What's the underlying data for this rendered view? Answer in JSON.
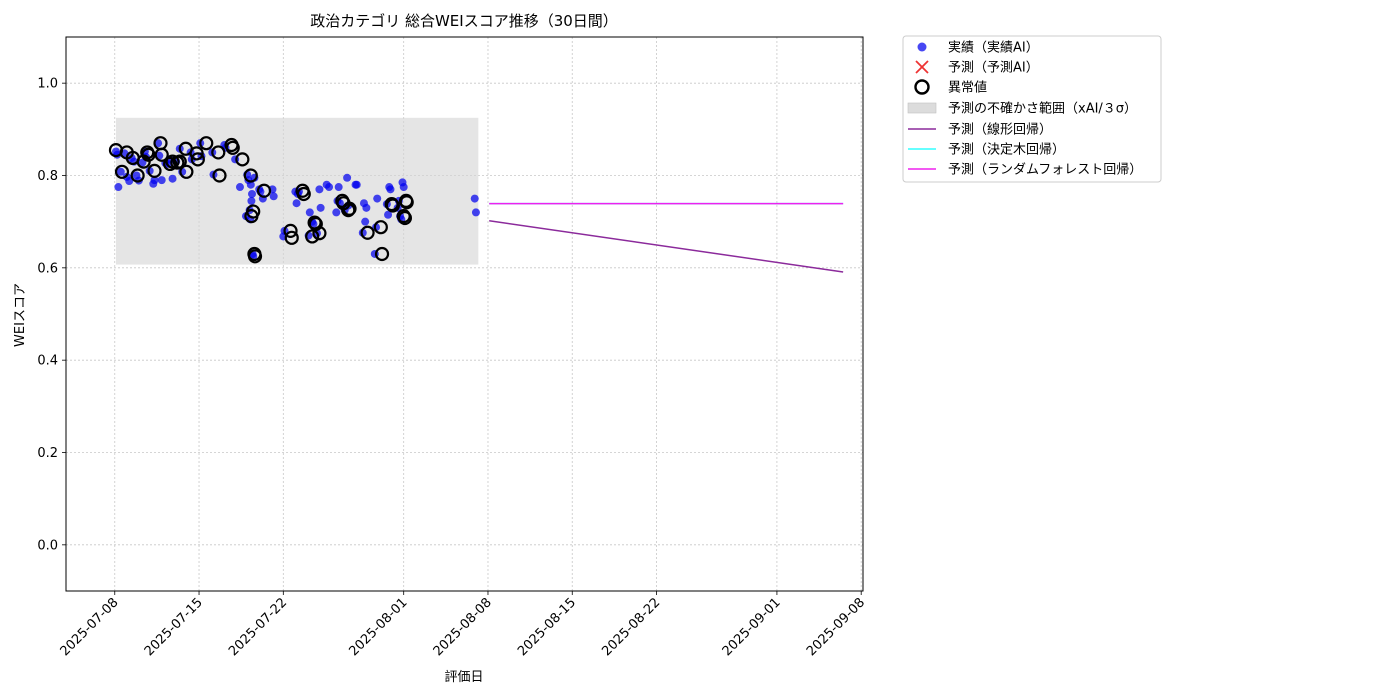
{
  "chart_data": {
    "type": "scatter",
    "title": "政治カテゴリ 総合WEIスコア推移（30日間）",
    "xlabel": "評価日",
    "ylabel": "WEIスコア",
    "xlim": [
      "2025-07-04",
      "2025-09-08"
    ],
    "ylim": [
      -0.1,
      1.1
    ],
    "grid": true,
    "legend_position": "outside-upper-right",
    "x_ticks": [
      "2025-07-08",
      "2025-07-15",
      "2025-07-22",
      "2025-08-01",
      "2025-08-08",
      "2025-08-15",
      "2025-08-22",
      "2025-09-01",
      "2025-09-08"
    ],
    "y_ticks": [
      "0.0",
      "0.2",
      "0.4",
      "0.6",
      "0.8",
      "1.0"
    ],
    "colors": {
      "actual": "#0000ee",
      "predicted_marker": "#ee3333",
      "anomaly_edge": "#000000",
      "uncertainty_band": "#d3d3d3",
      "linear": "#8b2a9b",
      "decision_tree": "#33ffff",
      "random_forest": "#ee22ee"
    },
    "legend": [
      {
        "key": "actual",
        "label": "実績（実績AI）",
        "symbol": "dot"
      },
      {
        "key": "predicted_marker",
        "label": "予測（予測AI）",
        "symbol": "cross"
      },
      {
        "key": "anomaly",
        "label": "異常値",
        "symbol": "ring"
      },
      {
        "key": "uncertainty_band",
        "label": "予測の不確かさ範囲（xAI/３σ）",
        "symbol": "band"
      },
      {
        "key": "linear",
        "label": "予測（線形回帰）",
        "symbol": "line"
      },
      {
        "key": "decision_tree",
        "label": "予測（決定木回帰）",
        "symbol": "line"
      },
      {
        "key": "random_forest",
        "label": "予測（ランダムフォレスト回帰）",
        "symbol": "line"
      }
    ],
    "uncertainty_band": {
      "x_start": 7.1,
      "x_end": 37.2,
      "y_low": 0.607,
      "y_high": 0.925
    },
    "forecast_lines": {
      "linear": {
        "x": [
          38.1,
          67.5
        ],
        "y": [
          0.702,
          0.591
        ]
      },
      "decision_tree": {
        "x": [
          38.1,
          67.5
        ],
        "y": [
          0.739,
          0.739
        ]
      },
      "random_forest": {
        "x": [
          38.1,
          67.5
        ],
        "y": [
          0.739,
          0.739
        ]
      }
    },
    "actual_points": [
      [
        7.1,
        0.852
      ],
      [
        7.2,
        0.845
      ],
      [
        7.3,
        0.775
      ],
      [
        7.5,
        0.808
      ],
      [
        7.8,
        0.848
      ],
      [
        8.0,
        0.797
      ],
      [
        8.2,
        0.788
      ],
      [
        8.4,
        0.838
      ],
      [
        8.6,
        0.83
      ],
      [
        8.8,
        0.8
      ],
      [
        9.0,
        0.789
      ],
      [
        9.3,
        0.828
      ],
      [
        9.5,
        0.852
      ],
      [
        9.6,
        0.84
      ],
      [
        9.9,
        0.81
      ],
      [
        10.2,
        0.782
      ],
      [
        10.3,
        0.79
      ],
      [
        10.6,
        0.87
      ],
      [
        10.7,
        0.843
      ],
      [
        10.9,
        0.79
      ],
      [
        11.2,
        0.827
      ],
      [
        11.4,
        0.825
      ],
      [
        11.6,
        0.835
      ],
      [
        11.8,
        0.793
      ],
      [
        12.1,
        0.83
      ],
      [
        12.4,
        0.858
      ],
      [
        12.6,
        0.808
      ],
      [
        13.3,
        0.85
      ],
      [
        13.4,
        0.835
      ],
      [
        14.1,
        0.87
      ],
      [
        14.2,
        0.842
      ],
      [
        15.1,
        0.85
      ],
      [
        15.2,
        0.802
      ],
      [
        16.1,
        0.866
      ],
      [
        16.2,
        0.86
      ],
      [
        17.0,
        0.835
      ],
      [
        17.4,
        0.775
      ],
      [
        17.9,
        0.712
      ],
      [
        18.0,
        0.802
      ],
      [
        18.1,
        0.79
      ],
      [
        18.2,
        0.725
      ],
      [
        18.25,
        0.705
      ],
      [
        18.3,
        0.78
      ],
      [
        18.35,
        0.745
      ],
      [
        18.4,
        0.76
      ],
      [
        18.45,
        0.63
      ],
      [
        18.5,
        0.625
      ],
      [
        18.6,
        0.795
      ],
      [
        19.0,
        0.77
      ],
      [
        19.1,
        0.765
      ],
      [
        19.3,
        0.75
      ],
      [
        20.1,
        0.77
      ],
      [
        20.2,
        0.755
      ],
      [
        21.0,
        0.668
      ],
      [
        21.1,
        0.68
      ],
      [
        22.0,
        0.765
      ],
      [
        22.1,
        0.74
      ],
      [
        22.2,
        0.76
      ],
      [
        22.3,
        0.765
      ],
      [
        23.1,
        0.67
      ],
      [
        23.2,
        0.72
      ],
      [
        23.4,
        0.7
      ],
      [
        23.5,
        0.695
      ],
      [
        23.8,
        0.675
      ],
      [
        24.0,
        0.77
      ],
      [
        24.1,
        0.73
      ],
      [
        24.6,
        0.78
      ],
      [
        24.8,
        0.775
      ],
      [
        25.4,
        0.72
      ],
      [
        25.5,
        0.745
      ],
      [
        25.6,
        0.775
      ],
      [
        25.7,
        0.74
      ],
      [
        26.1,
        0.725
      ],
      [
        26.3,
        0.795
      ],
      [
        26.4,
        0.735
      ],
      [
        27.0,
        0.78
      ],
      [
        27.1,
        0.78
      ],
      [
        27.6,
        0.676
      ],
      [
        27.7,
        0.74
      ],
      [
        27.8,
        0.7
      ],
      [
        27.9,
        0.73
      ],
      [
        28.6,
        0.63
      ],
      [
        28.7,
        0.688
      ],
      [
        28.8,
        0.75
      ],
      [
        29.6,
        0.738
      ],
      [
        29.7,
        0.715
      ],
      [
        29.8,
        0.775
      ],
      [
        29.9,
        0.77
      ],
      [
        30.5,
        0.73
      ],
      [
        30.6,
        0.745
      ],
      [
        30.7,
        0.712
      ],
      [
        30.8,
        0.705
      ],
      [
        30.9,
        0.785
      ],
      [
        31.0,
        0.775
      ],
      [
        36.9,
        0.75
      ],
      [
        37.0,
        0.72
      ]
    ],
    "anomaly_points": [
      [
        7.1,
        0.855
      ],
      [
        7.6,
        0.808
      ],
      [
        8.0,
        0.85
      ],
      [
        8.5,
        0.838
      ],
      [
        8.9,
        0.8
      ],
      [
        9.4,
        0.83
      ],
      [
        9.7,
        0.85
      ],
      [
        9.8,
        0.845
      ],
      [
        10.3,
        0.81
      ],
      [
        10.8,
        0.87
      ],
      [
        10.9,
        0.845
      ],
      [
        11.6,
        0.825
      ],
      [
        11.8,
        0.83
      ],
      [
        12.2,
        0.828
      ],
      [
        12.4,
        0.83
      ],
      [
        12.9,
        0.858
      ],
      [
        12.95,
        0.808
      ],
      [
        13.8,
        0.848
      ],
      [
        13.9,
        0.835
      ],
      [
        14.6,
        0.87
      ],
      [
        15.6,
        0.85
      ],
      [
        15.7,
        0.8
      ],
      [
        16.7,
        0.866
      ],
      [
        16.8,
        0.86
      ],
      [
        17.6,
        0.835
      ],
      [
        18.3,
        0.8
      ],
      [
        18.35,
        0.712
      ],
      [
        18.5,
        0.722
      ],
      [
        18.6,
        0.63
      ],
      [
        18.65,
        0.625
      ],
      [
        19.4,
        0.767
      ],
      [
        21.6,
        0.68
      ],
      [
        21.7,
        0.665
      ],
      [
        22.6,
        0.767
      ],
      [
        22.7,
        0.76
      ],
      [
        23.4,
        0.668
      ],
      [
        23.6,
        0.698
      ],
      [
        23.7,
        0.695
      ],
      [
        24.0,
        0.675
      ],
      [
        25.9,
        0.745
      ],
      [
        26.0,
        0.74
      ],
      [
        26.4,
        0.725
      ],
      [
        26.5,
        0.728
      ],
      [
        28.0,
        0.676
      ],
      [
        29.1,
        0.688
      ],
      [
        29.2,
        0.63
      ],
      [
        30.0,
        0.738
      ],
      [
        30.1,
        0.735
      ],
      [
        31.0,
        0.712
      ],
      [
        31.1,
        0.708
      ],
      [
        31.2,
        0.745
      ],
      [
        31.25,
        0.742
      ]
    ]
  }
}
